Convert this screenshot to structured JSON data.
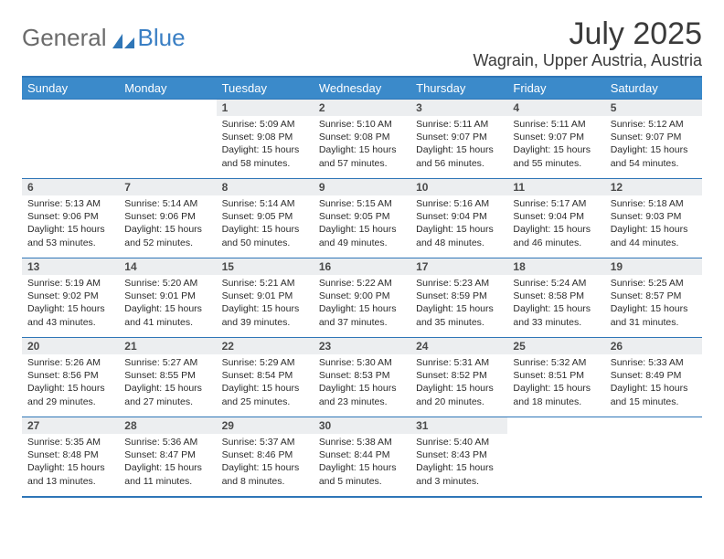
{
  "logo": {
    "word1": "General",
    "word2": "Blue"
  },
  "title": "July 2025",
  "subtitle": "Wagrain, Upper Austria, Austria",
  "header_bg": "#3b8aca",
  "border_color": "#2f76b7",
  "daynum_bg": "#eceef0",
  "text_color": "#2b2b2b",
  "days": [
    "Sunday",
    "Monday",
    "Tuesday",
    "Wednesday",
    "Thursday",
    "Friday",
    "Saturday"
  ],
  "grid": [
    [
      {
        "n": "",
        "sr": "",
        "ss": "",
        "dl1": "",
        "dl2": "",
        "empty": true
      },
      {
        "n": "",
        "sr": "",
        "ss": "",
        "dl1": "",
        "dl2": "",
        "empty": true
      },
      {
        "n": "1",
        "sr": "Sunrise: 5:09 AM",
        "ss": "Sunset: 9:08 PM",
        "dl1": "Daylight: 15 hours",
        "dl2": "and 58 minutes."
      },
      {
        "n": "2",
        "sr": "Sunrise: 5:10 AM",
        "ss": "Sunset: 9:08 PM",
        "dl1": "Daylight: 15 hours",
        "dl2": "and 57 minutes."
      },
      {
        "n": "3",
        "sr": "Sunrise: 5:11 AM",
        "ss": "Sunset: 9:07 PM",
        "dl1": "Daylight: 15 hours",
        "dl2": "and 56 minutes."
      },
      {
        "n": "4",
        "sr": "Sunrise: 5:11 AM",
        "ss": "Sunset: 9:07 PM",
        "dl1": "Daylight: 15 hours",
        "dl2": "and 55 minutes."
      },
      {
        "n": "5",
        "sr": "Sunrise: 5:12 AM",
        "ss": "Sunset: 9:07 PM",
        "dl1": "Daylight: 15 hours",
        "dl2": "and 54 minutes."
      }
    ],
    [
      {
        "n": "6",
        "sr": "Sunrise: 5:13 AM",
        "ss": "Sunset: 9:06 PM",
        "dl1": "Daylight: 15 hours",
        "dl2": "and 53 minutes."
      },
      {
        "n": "7",
        "sr": "Sunrise: 5:14 AM",
        "ss": "Sunset: 9:06 PM",
        "dl1": "Daylight: 15 hours",
        "dl2": "and 52 minutes."
      },
      {
        "n": "8",
        "sr": "Sunrise: 5:14 AM",
        "ss": "Sunset: 9:05 PM",
        "dl1": "Daylight: 15 hours",
        "dl2": "and 50 minutes."
      },
      {
        "n": "9",
        "sr": "Sunrise: 5:15 AM",
        "ss": "Sunset: 9:05 PM",
        "dl1": "Daylight: 15 hours",
        "dl2": "and 49 minutes."
      },
      {
        "n": "10",
        "sr": "Sunrise: 5:16 AM",
        "ss": "Sunset: 9:04 PM",
        "dl1": "Daylight: 15 hours",
        "dl2": "and 48 minutes."
      },
      {
        "n": "11",
        "sr": "Sunrise: 5:17 AM",
        "ss": "Sunset: 9:04 PM",
        "dl1": "Daylight: 15 hours",
        "dl2": "and 46 minutes."
      },
      {
        "n": "12",
        "sr": "Sunrise: 5:18 AM",
        "ss": "Sunset: 9:03 PM",
        "dl1": "Daylight: 15 hours",
        "dl2": "and 44 minutes."
      }
    ],
    [
      {
        "n": "13",
        "sr": "Sunrise: 5:19 AM",
        "ss": "Sunset: 9:02 PM",
        "dl1": "Daylight: 15 hours",
        "dl2": "and 43 minutes."
      },
      {
        "n": "14",
        "sr": "Sunrise: 5:20 AM",
        "ss": "Sunset: 9:01 PM",
        "dl1": "Daylight: 15 hours",
        "dl2": "and 41 minutes."
      },
      {
        "n": "15",
        "sr": "Sunrise: 5:21 AM",
        "ss": "Sunset: 9:01 PM",
        "dl1": "Daylight: 15 hours",
        "dl2": "and 39 minutes."
      },
      {
        "n": "16",
        "sr": "Sunrise: 5:22 AM",
        "ss": "Sunset: 9:00 PM",
        "dl1": "Daylight: 15 hours",
        "dl2": "and 37 minutes."
      },
      {
        "n": "17",
        "sr": "Sunrise: 5:23 AM",
        "ss": "Sunset: 8:59 PM",
        "dl1": "Daylight: 15 hours",
        "dl2": "and 35 minutes."
      },
      {
        "n": "18",
        "sr": "Sunrise: 5:24 AM",
        "ss": "Sunset: 8:58 PM",
        "dl1": "Daylight: 15 hours",
        "dl2": "and 33 minutes."
      },
      {
        "n": "19",
        "sr": "Sunrise: 5:25 AM",
        "ss": "Sunset: 8:57 PM",
        "dl1": "Daylight: 15 hours",
        "dl2": "and 31 minutes."
      }
    ],
    [
      {
        "n": "20",
        "sr": "Sunrise: 5:26 AM",
        "ss": "Sunset: 8:56 PM",
        "dl1": "Daylight: 15 hours",
        "dl2": "and 29 minutes."
      },
      {
        "n": "21",
        "sr": "Sunrise: 5:27 AM",
        "ss": "Sunset: 8:55 PM",
        "dl1": "Daylight: 15 hours",
        "dl2": "and 27 minutes."
      },
      {
        "n": "22",
        "sr": "Sunrise: 5:29 AM",
        "ss": "Sunset: 8:54 PM",
        "dl1": "Daylight: 15 hours",
        "dl2": "and 25 minutes."
      },
      {
        "n": "23",
        "sr": "Sunrise: 5:30 AM",
        "ss": "Sunset: 8:53 PM",
        "dl1": "Daylight: 15 hours",
        "dl2": "and 23 minutes."
      },
      {
        "n": "24",
        "sr": "Sunrise: 5:31 AM",
        "ss": "Sunset: 8:52 PM",
        "dl1": "Daylight: 15 hours",
        "dl2": "and 20 minutes."
      },
      {
        "n": "25",
        "sr": "Sunrise: 5:32 AM",
        "ss": "Sunset: 8:51 PM",
        "dl1": "Daylight: 15 hours",
        "dl2": "and 18 minutes."
      },
      {
        "n": "26",
        "sr": "Sunrise: 5:33 AM",
        "ss": "Sunset: 8:49 PM",
        "dl1": "Daylight: 15 hours",
        "dl2": "and 15 minutes."
      }
    ],
    [
      {
        "n": "27",
        "sr": "Sunrise: 5:35 AM",
        "ss": "Sunset: 8:48 PM",
        "dl1": "Daylight: 15 hours",
        "dl2": "and 13 minutes."
      },
      {
        "n": "28",
        "sr": "Sunrise: 5:36 AM",
        "ss": "Sunset: 8:47 PM",
        "dl1": "Daylight: 15 hours",
        "dl2": "and 11 minutes."
      },
      {
        "n": "29",
        "sr": "Sunrise: 5:37 AM",
        "ss": "Sunset: 8:46 PM",
        "dl1": "Daylight: 15 hours",
        "dl2": "and 8 minutes."
      },
      {
        "n": "30",
        "sr": "Sunrise: 5:38 AM",
        "ss": "Sunset: 8:44 PM",
        "dl1": "Daylight: 15 hours",
        "dl2": "and 5 minutes."
      },
      {
        "n": "31",
        "sr": "Sunrise: 5:40 AM",
        "ss": "Sunset: 8:43 PM",
        "dl1": "Daylight: 15 hours",
        "dl2": "and 3 minutes."
      },
      {
        "n": "",
        "sr": "",
        "ss": "",
        "dl1": "",
        "dl2": "",
        "empty": true
      },
      {
        "n": "",
        "sr": "",
        "ss": "",
        "dl1": "",
        "dl2": "",
        "empty": true
      }
    ]
  ]
}
